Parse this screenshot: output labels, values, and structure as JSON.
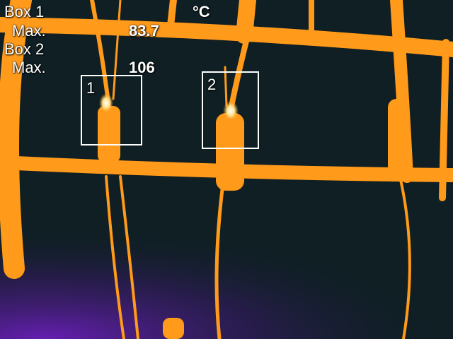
{
  "overlay": {
    "unit": "°C",
    "measurements": [
      {
        "box_label": "Box 1",
        "stat_label": "Max.",
        "value": "83.7"
      },
      {
        "box_label": "Box 2",
        "stat_label": "Max.",
        "value": "106"
      }
    ]
  },
  "regions": [
    {
      "id": "1"
    },
    {
      "id": "2"
    }
  ],
  "palette": {
    "background": "#0f1f24",
    "hot": "#ff9f14",
    "hottest": "#ffffff",
    "cool": "#6a1fb8"
  }
}
